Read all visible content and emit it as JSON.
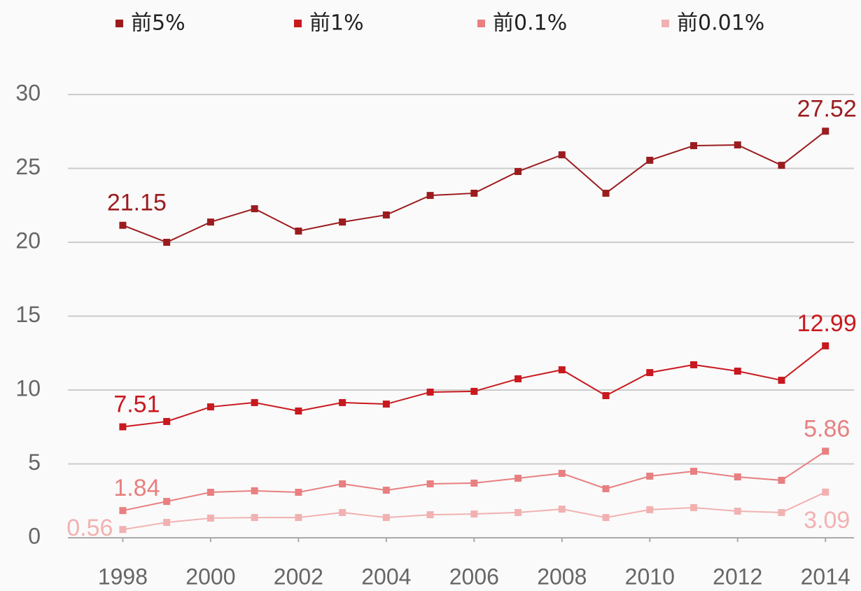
{
  "chart_data": {
    "type": "line",
    "x": [
      1998,
      1999,
      2000,
      2001,
      2002,
      2003,
      2004,
      2005,
      2006,
      2007,
      2008,
      2009,
      2010,
      2011,
      2012,
      2013,
      2014
    ],
    "series": [
      {
        "name": "前5%",
        "color": "#9b1c1f",
        "values": [
          21.15,
          20.0,
          21.37,
          22.27,
          20.76,
          21.37,
          21.85,
          23.17,
          23.32,
          24.79,
          25.92,
          23.32,
          25.55,
          26.54,
          26.59,
          25.21,
          27.52
        ]
      },
      {
        "name": "前1%",
        "color": "#c8191e",
        "values": [
          7.51,
          7.87,
          8.86,
          9.15,
          8.58,
          9.15,
          9.05,
          9.86,
          9.91,
          10.76,
          11.37,
          9.62,
          11.18,
          11.71,
          11.28,
          10.66,
          12.99
        ]
      },
      {
        "name": "前0.1%",
        "color": "#e87f80",
        "values": [
          1.84,
          2.46,
          3.08,
          3.18,
          3.08,
          3.65,
          3.22,
          3.65,
          3.7,
          4.03,
          4.36,
          3.32,
          4.17,
          4.5,
          4.12,
          3.89,
          5.86
        ]
      },
      {
        "name": "前0.01%",
        "color": "#f2b1b1",
        "values": [
          0.56,
          1.04,
          1.33,
          1.37,
          1.37,
          1.71,
          1.37,
          1.56,
          1.61,
          1.71,
          1.94,
          1.37,
          1.9,
          2.04,
          1.8,
          1.71,
          3.09
        ]
      }
    ],
    "xlim": [
      1996.75,
      2014.65
    ],
    "xticks": [
      1998,
      2000,
      2002,
      2004,
      2006,
      2008,
      2010,
      2012,
      2014
    ],
    "ylim": [
      0,
      30
    ],
    "yticks": [
      0,
      5,
      10,
      15,
      20,
      25,
      30
    ],
    "grid": true,
    "legend": "top",
    "data_labels": "ends"
  }
}
